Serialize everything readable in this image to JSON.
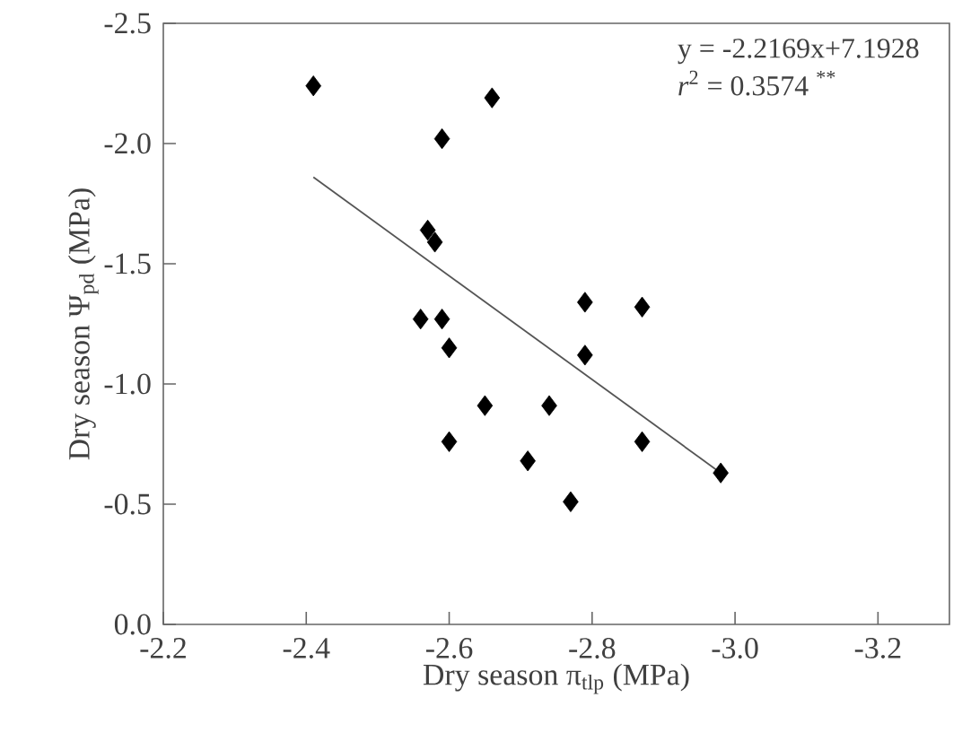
{
  "chart_data": {
    "type": "scatter",
    "xlabel": "Dry season π$_{tlp}$ (MPa)",
    "ylabel": "Dry season Ψ$_{pd}$ (MPa)",
    "annotations": [
      "y = -2.2169x+7.1928",
      "*r*$^{2}$ = 0.3574 $^{**}$"
    ],
    "xlim": [
      -2.2,
      -3.3
    ],
    "ylim": [
      0.0,
      -2.5
    ],
    "xticks": [
      -2.2,
      -2.4,
      -2.6,
      -2.8,
      {
        "value": -3.0,
        "label": "-3.0"
      },
      -3.2
    ],
    "yticks": [
      {
        "value": 0.0,
        "label": "0.0"
      },
      -0.5,
      {
        "value": -1.0,
        "label": "-1.0"
      },
      -1.5,
      {
        "value": -2.0,
        "label": "-2.0"
      },
      -2.5
    ],
    "grid": false,
    "marker": "diamond",
    "series": [
      {
        "color": "#000000",
        "x": [
          -2.41,
          -2.66,
          -2.59,
          -2.57,
          -2.58,
          -2.56,
          -2.59,
          -2.6,
          -2.79,
          -2.87,
          -2.79,
          -2.65,
          -2.74,
          -2.6,
          -2.87,
          -2.71,
          -2.77,
          -2.98
        ],
        "values": [
          -2.24,
          -2.19,
          -2.02,
          -1.64,
          -1.59,
          -1.27,
          -1.27,
          -1.15,
          -1.34,
          -1.32,
          -1.12,
          -0.91,
          -0.91,
          -0.76,
          -0.76,
          -0.68,
          -0.51,
          -0.63
        ]
      },
      {
        "type": "line",
        "color": "#555555",
        "marker": "none",
        "line_style": "solid",
        "x": [
          -2.41,
          -2.98
        ],
        "values": [
          -1.86,
          -0.63
        ]
      }
    ]
  }
}
